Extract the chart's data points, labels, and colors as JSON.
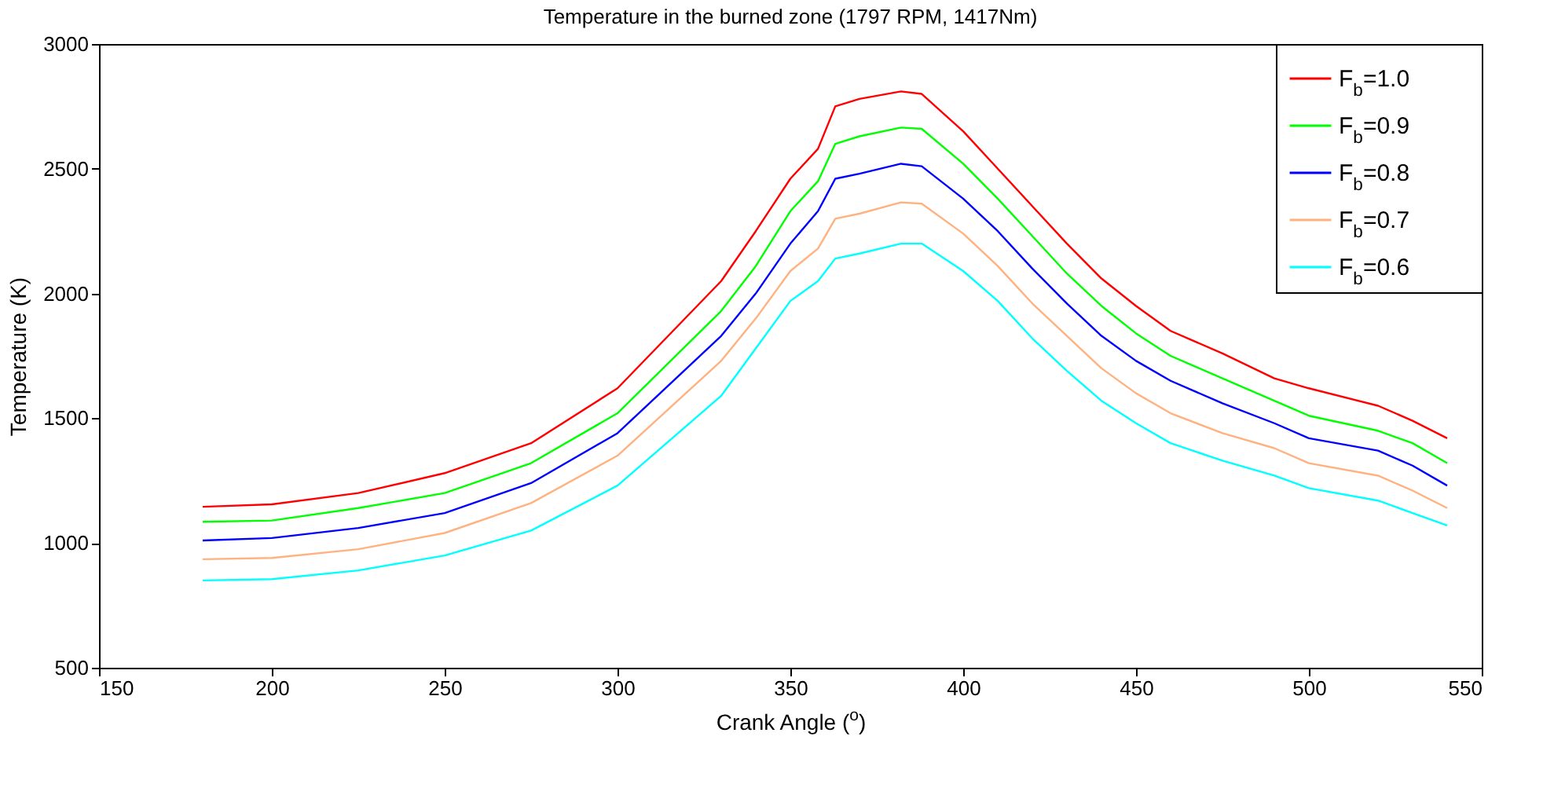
{
  "chart_data": {
    "type": "line",
    "title": "Temperature in the burned zone (1797 RPM, 1417Nm)",
    "xlabel": "Crank Angle ($^{o}$)",
    "ylabel": "Temperature (K)",
    "x": [
      180,
      200,
      225,
      250,
      275,
      300,
      330,
      340,
      350,
      358,
      363,
      370,
      382,
      388,
      400,
      410,
      420,
      430,
      440,
      450,
      460,
      475,
      490,
      500,
      520,
      530,
      540
    ],
    "series": [
      {
        "name": "F$_{b}$=1.0",
        "color": "#ff0000",
        "values": [
          1145,
          1155,
          1200,
          1280,
          1400,
          1620,
          2050,
          2250,
          2460,
          2580,
          2750,
          2780,
          2810,
          2800,
          2650,
          2500,
          2350,
          2200,
          2060,
          1950,
          1850,
          1760,
          1660,
          1620,
          1550,
          1490,
          1420
        ]
      },
      {
        "name": "F$_{b}$=0.9",
        "color": "#00ff00",
        "values": [
          1085,
          1090,
          1140,
          1200,
          1320,
          1520,
          1930,
          2110,
          2330,
          2450,
          2600,
          2630,
          2665,
          2660,
          2520,
          2380,
          2230,
          2080,
          1950,
          1840,
          1750,
          1660,
          1570,
          1510,
          1450,
          1400,
          1320
        ]
      },
      {
        "name": "F$_{b}$=0.8",
        "color": "#0000ff",
        "values": [
          1010,
          1020,
          1060,
          1120,
          1240,
          1440,
          1830,
          2000,
          2200,
          2330,
          2460,
          2480,
          2520,
          2510,
          2380,
          2250,
          2100,
          1960,
          1830,
          1730,
          1650,
          1560,
          1480,
          1420,
          1370,
          1310,
          1230
        ]
      },
      {
        "name": "F$_{b}$=0.7",
        "color": "#ffb27f",
        "values": [
          935,
          940,
          975,
          1040,
          1160,
          1350,
          1730,
          1900,
          2090,
          2180,
          2300,
          2320,
          2365,
          2360,
          2240,
          2110,
          1960,
          1830,
          1700,
          1600,
          1520,
          1440,
          1380,
          1320,
          1270,
          1210,
          1140
        ]
      },
      {
        "name": "F$_{b}$=0.6",
        "color": "#00ffff",
        "values": [
          850,
          855,
          890,
          950,
          1050,
          1230,
          1590,
          1780,
          1970,
          2050,
          2140,
          2160,
          2200,
          2200,
          2090,
          1970,
          1820,
          1690,
          1570,
          1480,
          1400,
          1330,
          1270,
          1220,
          1170,
          1120,
          1070
        ]
      }
    ],
    "xlim": [
      150,
      550
    ],
    "xticks": [
      150,
      200,
      250,
      300,
      350,
      400,
      450,
      500,
      550
    ],
    "ylim": [
      500,
      3000
    ],
    "yticks": [
      500,
      1000,
      1500,
      2000,
      2500,
      3000
    ],
    "legend": "top right",
    "grid": false,
    "marker": "none",
    "line_style": "solid"
  }
}
